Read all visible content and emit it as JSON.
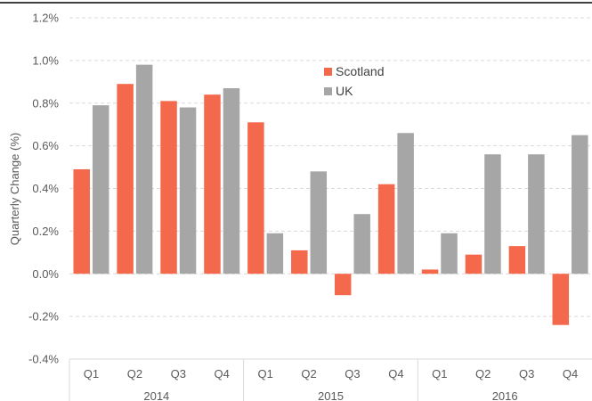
{
  "chart_data": {
    "type": "bar",
    "ylabel": "Quarterly Change (%)",
    "ylim": [
      -0.4,
      1.2
    ],
    "yticks": [
      "-0.4%",
      "-0.2%",
      "0.0%",
      "0.2%",
      "0.4%",
      "0.6%",
      "0.8%",
      "1.0%",
      "1.2%"
    ],
    "ytick_values": [
      -0.4,
      -0.2,
      0.0,
      0.2,
      0.4,
      0.6,
      0.8,
      1.0,
      1.2
    ],
    "grid": true,
    "legend_position": "top-center",
    "groups": [
      {
        "label": "2014",
        "categories": [
          "Q1",
          "Q2",
          "Q3",
          "Q4"
        ]
      },
      {
        "label": "2015",
        "categories": [
          "Q1",
          "Q2",
          "Q3",
          "Q4"
        ]
      },
      {
        "label": "2016",
        "categories": [
          "Q1",
          "Q2",
          "Q3",
          "Q4"
        ]
      }
    ],
    "series": [
      {
        "name": "Scotland",
        "color": "#f4694b",
        "values": [
          0.49,
          0.89,
          0.81,
          0.84,
          0.71,
          0.11,
          -0.1,
          0.42,
          0.02,
          0.09,
          0.13,
          -0.24
        ]
      },
      {
        "name": "UK",
        "color": "#a6a6a6",
        "values": [
          0.79,
          0.98,
          0.78,
          0.87,
          0.19,
          0.48,
          0.28,
          0.66,
          0.19,
          0.56,
          0.56,
          0.65
        ]
      }
    ]
  }
}
